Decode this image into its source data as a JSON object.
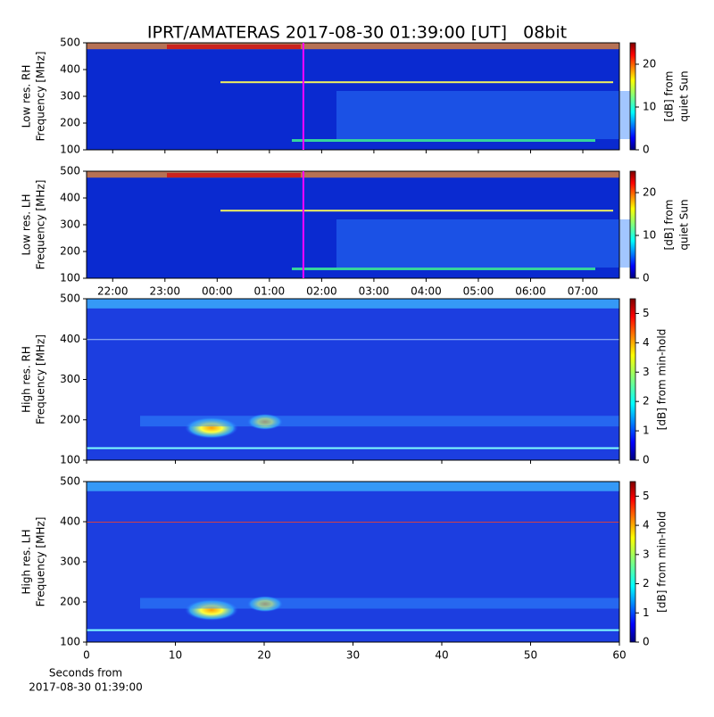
{
  "chart_data": {
    "type": "spectrogram",
    "title": "IPRT/AMATERAS 2017-08-30 01:39:00 [UT]   08bit",
    "panels": [
      {
        "ylabel": [
          "Low res. RH",
          "Frequency [MHz]"
        ],
        "ylim": [
          100,
          500
        ],
        "yticks": [
          100,
          200,
          300,
          400,
          500
        ],
        "xlim": [
          21.5,
          31.7
        ],
        "colorbar": {
          "label": [
            "[dB] from",
            "quiet Sun"
          ],
          "lim": [
            0,
            25
          ],
          "ticks": [
            0,
            10,
            20
          ],
          "colormap": "jet"
        },
        "marker_x": 25.65,
        "marker_color": "#ff00ff"
      },
      {
        "ylabel": [
          "Low res. LH",
          "Frequency [MHz]"
        ],
        "ylim": [
          100,
          500
        ],
        "yticks": [
          100,
          200,
          300,
          400,
          500
        ],
        "xlim": [
          21.5,
          31.7
        ],
        "xticks": [
          {
            "value": 22,
            "label": "22:00"
          },
          {
            "value": 23,
            "label": "23:00"
          },
          {
            "value": 24,
            "label": "00:00"
          },
          {
            "value": 25,
            "label": "01:00"
          },
          {
            "value": 26,
            "label": "02:00"
          },
          {
            "value": 27,
            "label": "03:00"
          },
          {
            "value": 28,
            "label": "04:00"
          },
          {
            "value": 29,
            "label": "05:00"
          },
          {
            "value": 30,
            "label": "06:00"
          },
          {
            "value": 31,
            "label": "07:00"
          }
        ],
        "colorbar": {
          "label": [
            "[dB] from",
            "quiet Sun"
          ],
          "lim": [
            0,
            25
          ],
          "ticks": [
            0,
            10,
            20
          ],
          "colormap": "jet"
        },
        "marker_x": 25.65,
        "marker_color": "#ff00ff"
      },
      {
        "ylabel": [
          "High res. RH",
          "Frequency [MHz]"
        ],
        "ylim": [
          100,
          500
        ],
        "yticks": [
          100,
          200,
          300,
          400,
          500
        ],
        "xlim": [
          0,
          60
        ],
        "colorbar": {
          "label": [
            "[dB] from min-hold"
          ],
          "lim": [
            0,
            5.5
          ],
          "ticks": [
            0,
            1,
            2,
            3,
            4,
            5
          ],
          "colormap": "jet"
        }
      },
      {
        "ylabel": [
          "High res. LH",
          "Frequency [MHz]"
        ],
        "ylim": [
          100,
          500
        ],
        "yticks": [
          100,
          200,
          300,
          400,
          500
        ],
        "xlim": [
          0,
          60
        ],
        "xticks": [
          0,
          10,
          20,
          30,
          40,
          50,
          60
        ],
        "xlabel": [
          "Seconds from",
          "2017-08-30 01:39:00"
        ],
        "colorbar": {
          "label": [
            "[dB] from min-hold"
          ],
          "lim": [
            0,
            5.5
          ],
          "ticks": [
            0,
            1,
            2,
            3,
            4,
            5
          ],
          "colormap": "jet"
        }
      }
    ]
  }
}
